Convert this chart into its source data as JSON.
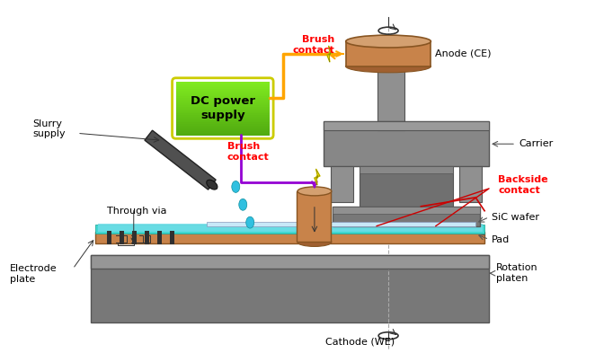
{
  "fig_width": 6.62,
  "fig_height": 3.93,
  "bg_color": "#ffffff",
  "gray": "#808080",
  "gray_dark": "#686868",
  "gray_light": "#aaaaaa",
  "gray_mid": "#909090",
  "copper": "#c8834a",
  "copper_top": "#d4a070",
  "teal_slurry": "#70dde0",
  "teal_pad": "#20b2aa",
  "orange_wire": "#ffa500",
  "purple_wire": "#9400d3",
  "red_line": "#cc0000",
  "labels": {
    "brush_contact_top": "Brush\ncontact",
    "anode": "Anode (CE)",
    "carrier": "Carrier",
    "backside_contact": "Backside\ncontact",
    "sic_wafer": "SiC wafer",
    "pad": "Pad",
    "rotation_platen": "Rotation\nplaten",
    "brush_contact_bot": "Brush\ncontact",
    "through_via": "Through via",
    "electrode_plate": "Electrode\nplate",
    "cathode": "Cathode (WE)",
    "slurry_supply": "Slurry\nsupply",
    "dc_power": "DC power\nsupply"
  }
}
